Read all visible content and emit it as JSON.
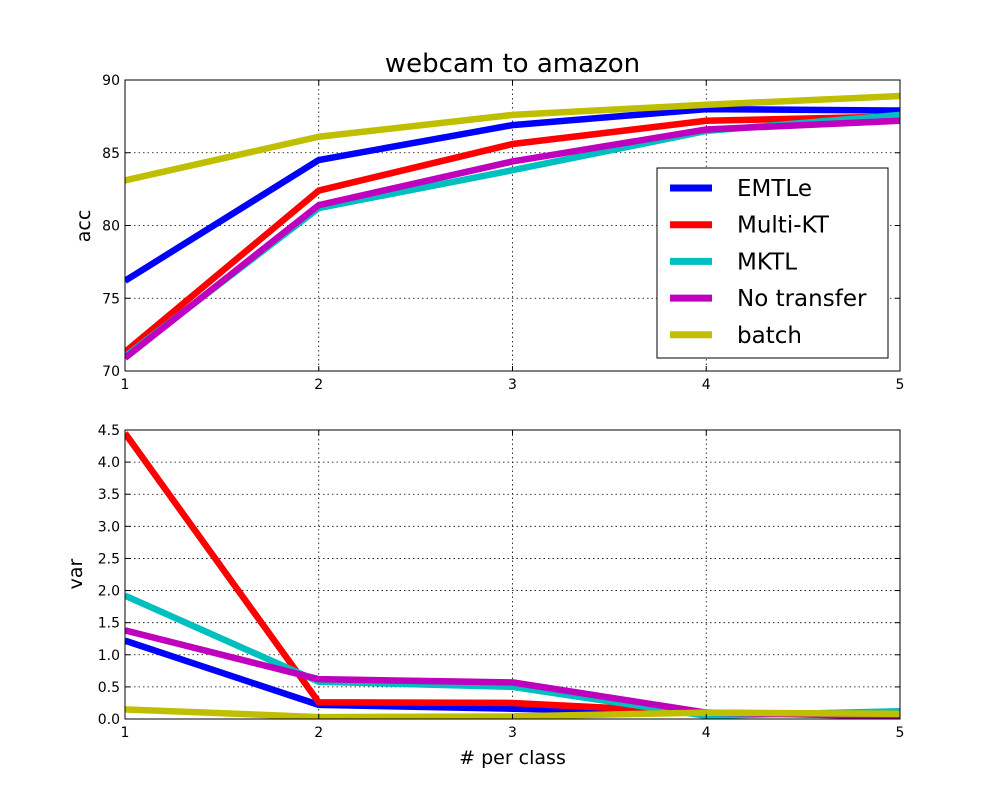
{
  "chart_data": [
    {
      "type": "line",
      "title": "webcam to amazon",
      "xlabel": "",
      "ylabel": "acc",
      "x": [
        1,
        2,
        3,
        4,
        5
      ],
      "xticks": [
        "1",
        "2",
        "3",
        "4",
        "5"
      ],
      "yticks": [
        "70",
        "75",
        "80",
        "85",
        "90"
      ],
      "xlim": [
        1,
        5
      ],
      "ylim": [
        70,
        90
      ],
      "grid": true,
      "legend_position": "center-right",
      "series": [
        {
          "name": "EMTLe",
          "color": "#0000ff",
          "values": [
            76.2,
            84.5,
            86.9,
            88.0,
            87.9
          ]
        },
        {
          "name": "Multi-KT",
          "color": "#ff0000",
          "values": [
            71.3,
            82.4,
            85.6,
            87.2,
            87.5
          ]
        },
        {
          "name": "MKTL",
          "color": "#00bfbf",
          "values": [
            71.0,
            81.2,
            83.8,
            86.5,
            87.6
          ]
        },
        {
          "name": "No transfer",
          "color": "#bf00bf",
          "values": [
            70.9,
            81.4,
            84.4,
            86.6,
            87.2
          ]
        },
        {
          "name": "batch",
          "color": "#bfbf00",
          "values": [
            83.1,
            86.1,
            87.6,
            88.3,
            88.9
          ]
        }
      ]
    },
    {
      "type": "line",
      "title": "",
      "xlabel": "# per class",
      "ylabel": "var",
      "x": [
        1,
        2,
        3,
        4,
        5
      ],
      "xticks": [
        "1",
        "2",
        "3",
        "4",
        "5"
      ],
      "yticks": [
        "0.0",
        "0.5",
        "1.0",
        "1.5",
        "2.0",
        "2.5",
        "3.0",
        "3.5",
        "4.0",
        "4.5"
      ],
      "xlim": [
        1,
        5
      ],
      "ylim": [
        0,
        4.5
      ],
      "grid": true,
      "series": [
        {
          "name": "EMTLe",
          "color": "#0000ff",
          "values": [
            1.22,
            0.22,
            0.16,
            0.1,
            0.06
          ]
        },
        {
          "name": "Multi-KT",
          "color": "#ff0000",
          "values": [
            4.45,
            0.26,
            0.25,
            0.1,
            0.05
          ]
        },
        {
          "name": "MKTL",
          "color": "#00bfbf",
          "values": [
            1.92,
            0.58,
            0.5,
            0.05,
            0.12
          ]
        },
        {
          "name": "No transfer",
          "color": "#bf00bf",
          "values": [
            1.38,
            0.62,
            0.57,
            0.1,
            0.04
          ]
        },
        {
          "name": "batch",
          "color": "#bfbf00",
          "values": [
            0.15,
            0.03,
            0.04,
            0.1,
            0.08
          ]
        }
      ]
    }
  ]
}
